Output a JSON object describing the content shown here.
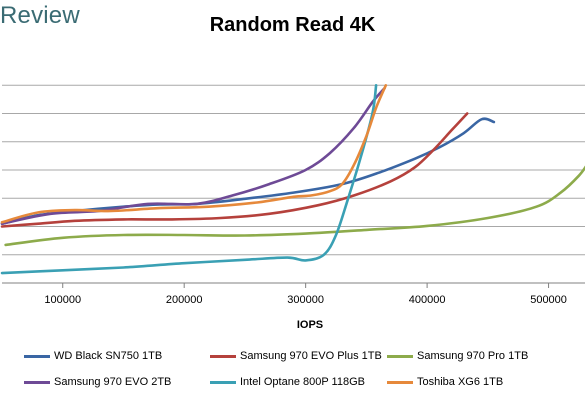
{
  "header": {
    "brand": "Review"
  },
  "chart_data": {
    "type": "line",
    "title": "Random Read 4K",
    "xlabel": "IOPS",
    "ylabel": "",
    "x_ticks": [
      100000,
      200000,
      300000,
      400000,
      500000
    ],
    "x_tick_labels": [
      "100000",
      "200000",
      "300000",
      "400000",
      "500000"
    ],
    "xlim": [
      50000,
      530000
    ],
    "ylim": [
      0,
      8
    ],
    "y_gridlines": [
      1,
      2,
      3,
      4,
      5,
      6,
      7
    ],
    "grid": true,
    "legend_position": "bottom",
    "series": [
      {
        "name": "WD Black SN750 1TB",
        "color": "#3a66a4",
        "x": [
          50000,
          80000,
          110000,
          150000,
          180000,
          210000,
          250000,
          290000,
          330000,
          360000,
          390000,
          410000,
          430000,
          445000,
          455000
        ],
        "y": [
          2.1,
          2.4,
          2.55,
          2.7,
          2.78,
          2.8,
          2.98,
          3.2,
          3.5,
          3.9,
          4.4,
          4.8,
          5.3,
          5.8,
          5.7
        ]
      },
      {
        "name": "Samsung 970 EVO Plus 1TB",
        "color": "#b5413c",
        "x": [
          50000,
          80000,
          110000,
          150000,
          190000,
          230000,
          270000,
          310000,
          340000,
          370000,
          390000,
          405000,
          420000,
          433000
        ],
        "y": [
          2.0,
          2.1,
          2.2,
          2.25,
          2.25,
          2.3,
          2.45,
          2.75,
          3.1,
          3.6,
          4.1,
          4.7,
          5.4,
          6.0
        ]
      },
      {
        "name": "Samsung 970 Pro 1TB",
        "color": "#8dab4b",
        "x": [
          53000,
          100000,
          150000,
          200000,
          250000,
          300000,
          350000,
          400000,
          450000,
          490000,
          510000,
          525000,
          532000
        ],
        "y": [
          1.35,
          1.6,
          1.7,
          1.7,
          1.68,
          1.75,
          1.88,
          2.02,
          2.3,
          2.7,
          3.2,
          3.8,
          4.2
        ]
      },
      {
        "name": "Samsung 970 EVO 2TB",
        "color": "#6e4a96",
        "x": [
          50000,
          90000,
          130000,
          170000,
          210000,
          240000,
          270000,
          300000,
          320000,
          340000,
          355000,
          365000
        ],
        "y": [
          2.1,
          2.45,
          2.55,
          2.8,
          2.8,
          3.1,
          3.5,
          4.0,
          4.6,
          5.5,
          6.4,
          6.9
        ]
      },
      {
        "name": "Intel Optane 800P 118GB",
        "color": "#3aa0b4",
        "x": [
          50000,
          100000,
          150000,
          200000,
          250000,
          285000,
          300000,
          315000,
          325000,
          335000,
          345000,
          355000,
          358000
        ],
        "y": [
          0.35,
          0.45,
          0.55,
          0.7,
          0.82,
          0.9,
          0.8,
          1.0,
          1.7,
          3.0,
          4.4,
          6.0,
          7.0
        ]
      },
      {
        "name": "Toshiba XG6 1TB",
        "color": "#e6893b",
        "x": [
          50000,
          80000,
          110000,
          140000,
          180000,
          220000,
          260000,
          290000,
          305000,
          320000,
          330000,
          340000,
          350000,
          358000,
          366000
        ],
        "y": [
          2.15,
          2.5,
          2.58,
          2.55,
          2.65,
          2.7,
          2.85,
          3.05,
          3.1,
          3.25,
          3.5,
          4.2,
          5.2,
          6.2,
          7.0
        ]
      }
    ]
  }
}
